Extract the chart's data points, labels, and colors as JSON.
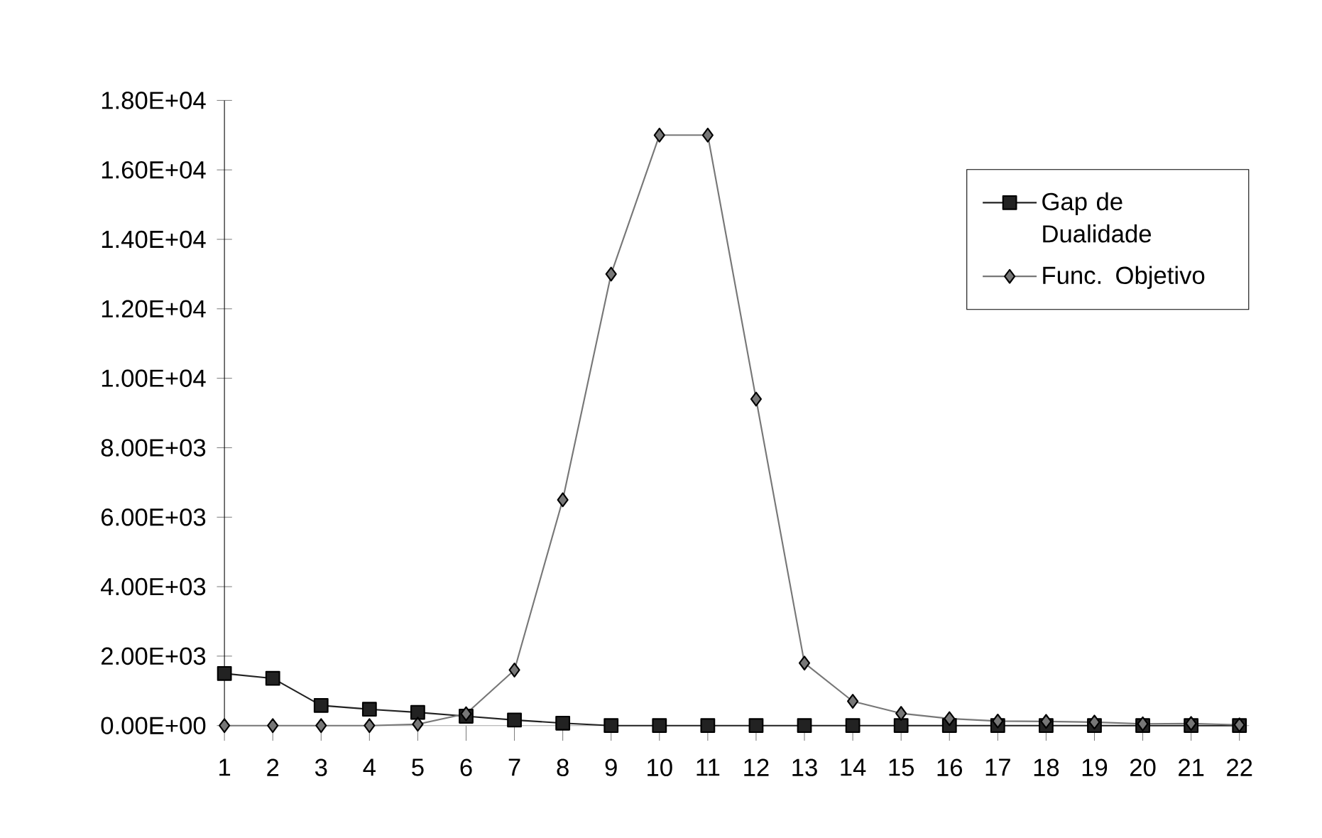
{
  "chart_data": {
    "type": "line",
    "categories": [
      "1",
      "2",
      "3",
      "4",
      "5",
      "6",
      "7",
      "8",
      "9",
      "10",
      "11",
      "12",
      "13",
      "14",
      "15",
      "16",
      "17",
      "18",
      "19",
      "20",
      "21",
      "22"
    ],
    "series": [
      {
        "name": "Gap de Dualidade",
        "color": "#222222",
        "marker": "square",
        "values": [
          1500,
          1360,
          580,
          470,
          380,
          270,
          160,
          70,
          0,
          0,
          0,
          0,
          0,
          0,
          0,
          0,
          0,
          0,
          0,
          0,
          0,
          0
        ]
      },
      {
        "name": "Func. Objetivo",
        "color": "#777777",
        "marker": "diamond",
        "values": [
          0,
          0,
          0,
          0,
          40,
          340,
          1600,
          6500,
          13000,
          17000,
          17000,
          9400,
          1800,
          700,
          350,
          200,
          130,
          120,
          100,
          50,
          60,
          20
        ]
      }
    ],
    "ylim": [
      0,
      18000
    ],
    "yticks": [
      {
        "value": 0,
        "label": "0.00E+00"
      },
      {
        "value": 2000,
        "label": "2.00E+03"
      },
      {
        "value": 4000,
        "label": "4.00E+03"
      },
      {
        "value": 6000,
        "label": "6.00E+03"
      },
      {
        "value": 8000,
        "label": "8.00E+03"
      },
      {
        "value": 10000,
        "label": "1.00E+04"
      },
      {
        "value": 12000,
        "label": "1.20E+04"
      },
      {
        "value": 14000,
        "label": "1.40E+04"
      },
      {
        "value": 16000,
        "label": "1.60E+04"
      },
      {
        "value": 18000,
        "label": "1.80E+04"
      }
    ],
    "grid": false,
    "legend": "top right",
    "line_style": "solid"
  }
}
